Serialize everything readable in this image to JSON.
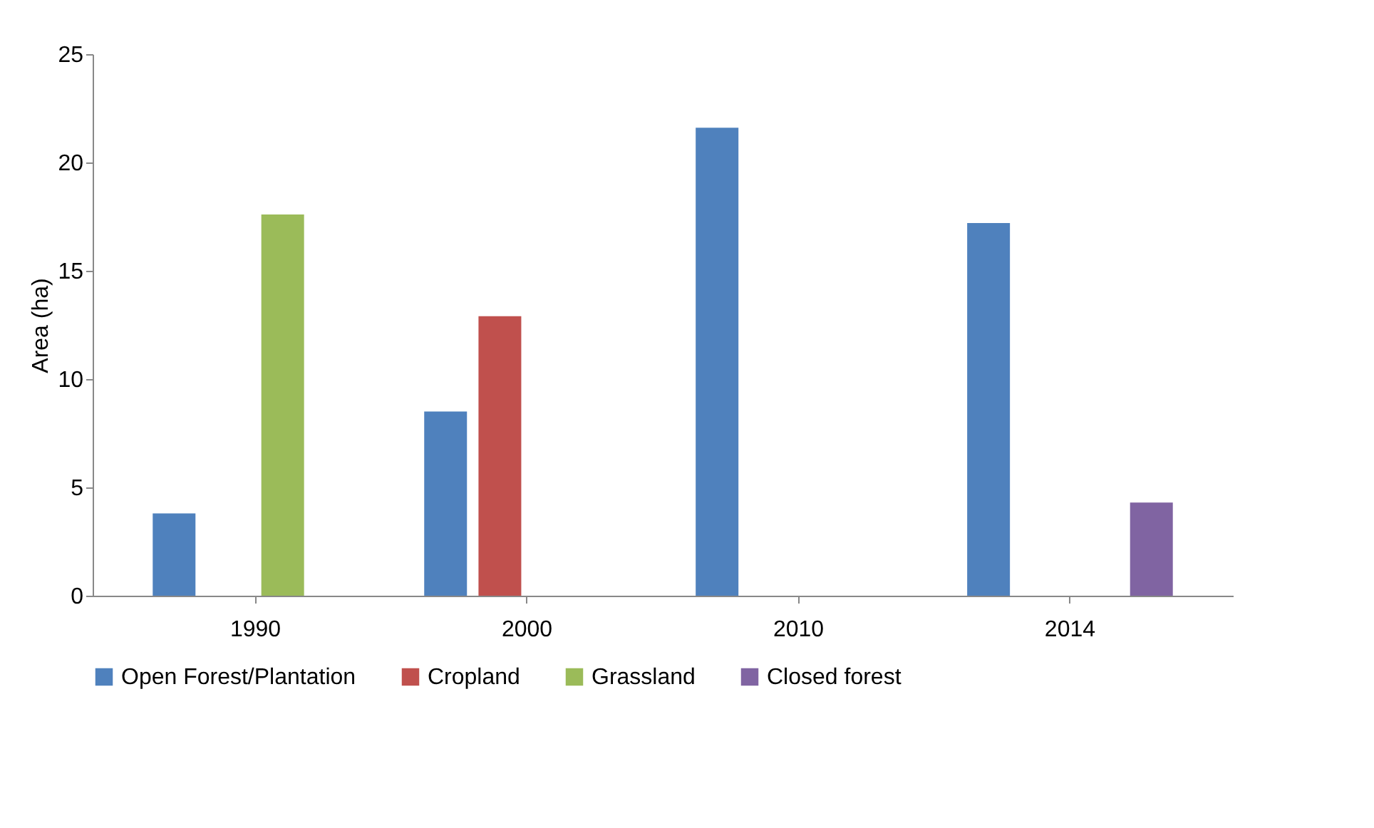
{
  "chart_data": {
    "type": "bar",
    "ylabel": "Area (ha)",
    "categories": [
      "1990",
      "2000",
      "2010",
      "2014"
    ],
    "series": [
      {
        "name": "Open Forest/Plantation",
        "color": "#4f81bd",
        "values": [
          3.8,
          8.5,
          21.6,
          17.2
        ]
      },
      {
        "name": "Cropland",
        "color": "#c0504d",
        "values": [
          0,
          12.9,
          0,
          0
        ]
      },
      {
        "name": "Grassland",
        "color": "#9bbb59",
        "values": [
          17.6,
          0,
          0,
          0
        ]
      },
      {
        "name": "Closed forest",
        "color": "#8064a2",
        "values": [
          0,
          0,
          0,
          4.3
        ]
      }
    ],
    "ylim": [
      0,
      25
    ],
    "yticks": [
      0,
      5,
      10,
      15,
      20,
      25
    ],
    "grid": false,
    "legend": "bottom"
  }
}
